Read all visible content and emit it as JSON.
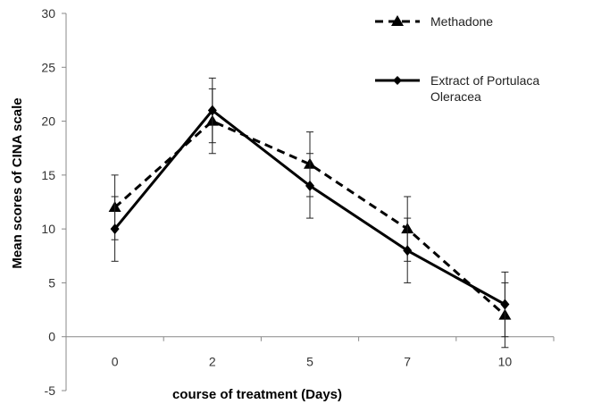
{
  "chart_data": {
    "type": "line",
    "title": "",
    "xlabel": "course of treatment (Days)",
    "ylabel": "Mean scores of CINA scale",
    "categories": [
      "0",
      "2",
      "5",
      "7",
      "10"
    ],
    "ylim": [
      -5,
      30
    ],
    "yticks": [
      "-5",
      "0",
      "5",
      "10",
      "15",
      "20",
      "25",
      "30"
    ],
    "grid": false,
    "legend_position": "top-right",
    "series": [
      {
        "name": "Methadone",
        "line_style": "dashed",
        "marker": "triangle",
        "color": "#000000",
        "values": [
          12,
          20,
          16,
          10,
          2
        ],
        "error": [
          3,
          3,
          3,
          3,
          3
        ]
      },
      {
        "name_lines": [
          "Extract of Portulaca",
          "Oleracea"
        ],
        "line_style": "solid",
        "marker": "diamond",
        "color": "#000000",
        "values": [
          10,
          21,
          14,
          8,
          3
        ],
        "error": [
          3,
          3,
          3,
          3,
          3
        ]
      }
    ]
  }
}
